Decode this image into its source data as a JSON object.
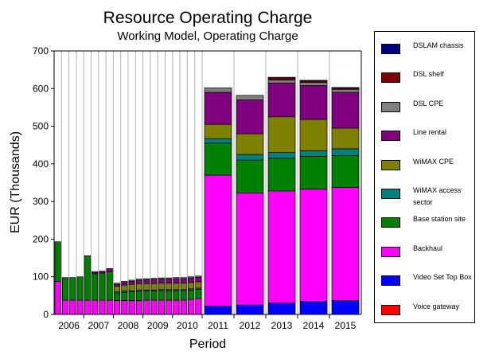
{
  "chart_data": {
    "type": "bar",
    "stacked": true,
    "title": "Resource Operating Charge",
    "subtitle": "Working Model, Operating Charge",
    "xlabel": "Period",
    "ylabel": "EUR (Thousands)",
    "ylim": [
      0,
      700
    ],
    "yticks": [
      0,
      100,
      200,
      300,
      400,
      500,
      600,
      700
    ],
    "grid": "vertical",
    "legend_position": "right",
    "year_labels": [
      "2006",
      "2007",
      "2008",
      "2009",
      "2010",
      "2011",
      "2012",
      "2013",
      "2014",
      "2015"
    ],
    "x": [
      "2006-Q1",
      "2006-Q2",
      "2006-Q3",
      "2006-Q4",
      "2007-Q1",
      "2007-Q2",
      "2007-Q3",
      "2007-Q4",
      "2008-Q1",
      "2008-Q2",
      "2008-Q3",
      "2008-Q4",
      "2009-Q1",
      "2009-Q2",
      "2009-Q3",
      "2009-Q4",
      "2010-Q1",
      "2010-Q2",
      "2010-Q3",
      "2010-Q4",
      "2011",
      "2012",
      "2013",
      "2014",
      "2015"
    ],
    "series": [
      {
        "name": "Voice gateway",
        "color": "#ff0000",
        "values": [
          0,
          0,
          0,
          0,
          0,
          0,
          0,
          0,
          0,
          0,
          0,
          0,
          0,
          0,
          0,
          0,
          0,
          0,
          0,
          0,
          0,
          0,
          0,
          0,
          0
        ]
      },
      {
        "name": "Video Set Top Box",
        "color": "#0000ff",
        "values": [
          0,
          0,
          0,
          0,
          0,
          0,
          0,
          0,
          0,
          0,
          0,
          0,
          0,
          0,
          0,
          0,
          0,
          0,
          0,
          0,
          22,
          25,
          30,
          35,
          37
        ]
      },
      {
        "name": "Backhaul",
        "color": "#ff00ff",
        "values": [
          88,
          38,
          38,
          38,
          38,
          38,
          38,
          38,
          37,
          37,
          37,
          37,
          38,
          38,
          38,
          38,
          38,
          38,
          40,
          42,
          348,
          298,
          298,
          298,
          300
        ]
      },
      {
        "name": "Base station site",
        "color": "#007f00",
        "values": [
          105,
          57,
          60,
          62,
          118,
          70,
          72,
          76,
          20,
          22,
          23,
          24,
          24,
          24,
          25,
          25,
          25,
          25,
          25,
          25,
          85,
          87,
          87,
          87,
          85
        ]
      },
      {
        "name": "WiMAX access sector",
        "color": "#007f7f",
        "values": [
          0,
          0,
          0,
          0,
          0,
          0,
          0,
          0,
          3,
          3,
          3,
          3,
          3,
          3,
          3,
          3,
          3,
          3,
          3,
          3,
          12,
          15,
          15,
          15,
          18
        ]
      },
      {
        "name": "WiMAX CPE",
        "color": "#7f7f00",
        "values": [
          0,
          0,
          0,
          0,
          0,
          0,
          0,
          0,
          15,
          16,
          17,
          18,
          17,
          17,
          17,
          17,
          17,
          17,
          17,
          17,
          38,
          55,
          95,
          83,
          55
        ]
      },
      {
        "name": "Line rental",
        "color": "#7f007f",
        "values": [
          0,
          0,
          0,
          0,
          0,
          3,
          5,
          8,
          5,
          7,
          8,
          9,
          10,
          11,
          11,
          11,
          12,
          12,
          12,
          12,
          85,
          90,
          90,
          90,
          95
        ]
      },
      {
        "name": "DSL CPE",
        "color": "#808080",
        "values": [
          0,
          3,
          0,
          0,
          0,
          3,
          0,
          0,
          3,
          3,
          3,
          3,
          3,
          3,
          3,
          3,
          3,
          3,
          3,
          3,
          12,
          12,
          8,
          8,
          8
        ]
      },
      {
        "name": "DSL shelf",
        "color": "#7f0000",
        "values": [
          0,
          0,
          0,
          0,
          0,
          0,
          0,
          0,
          0,
          0,
          0,
          0,
          0,
          0,
          0,
          0,
          0,
          0,
          0,
          0,
          0,
          0,
          5,
          4,
          3
        ]
      },
      {
        "name": "DSLAM chassis",
        "color": "#00007f",
        "values": [
          0,
          0,
          0,
          0,
          0,
          0,
          0,
          0,
          0,
          0,
          0,
          0,
          0,
          0,
          0,
          0,
          0,
          0,
          0,
          0,
          0,
          0,
          2,
          2,
          2
        ]
      }
    ]
  },
  "legend_order": [
    "DSLAM chassis",
    "DSL shelf",
    "DSL CPE",
    "Line rental",
    "WiMAX CPE",
    "WiMAX access sector",
    "Base station site",
    "Backhaul",
    "Video Set Top Box",
    "Voice gateway"
  ]
}
